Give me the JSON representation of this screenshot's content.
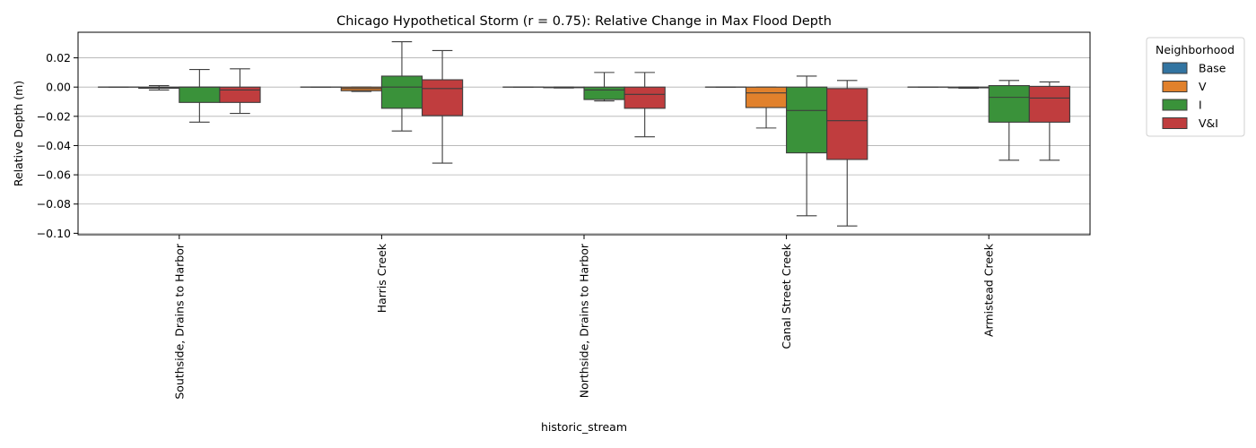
{
  "chart_data": {
    "type": "box",
    "title": "Chicago Hypothetical Storm (r = 0.75): Relative Change in Max Flood Depth",
    "xlabel": "historic_stream",
    "ylabel": "Relative Depth (m)",
    "ylim": [
      -0.101,
      0.0375
    ],
    "yticks": [
      0.02,
      0.0,
      -0.02,
      -0.04,
      -0.06,
      -0.08,
      -0.1
    ],
    "ytick_labels": [
      "0.02",
      "0.00",
      "−0.02",
      "−0.04",
      "−0.06",
      "−0.08",
      "−0.10"
    ],
    "grid": "y",
    "categories": [
      "Southside, Drains to Harbor",
      "Harris Creek",
      "Northside, Drains to Harbor",
      "Canal Street Creek",
      "Armistead Creek"
    ],
    "legend": {
      "title": "Neighborhood",
      "placement": "outside-top-right"
    },
    "series": [
      {
        "name": "Base",
        "color": "#3274a1",
        "boxes": [
          {
            "whislo": 0.0,
            "q1": 0.0,
            "med": 0.0,
            "q3": 0.0,
            "whishi": 0.0
          },
          {
            "whislo": 0.0,
            "q1": 0.0,
            "med": 0.0,
            "q3": 0.0,
            "whishi": 0.0
          },
          {
            "whislo": 0.0,
            "q1": 0.0,
            "med": 0.0,
            "q3": 0.0,
            "whishi": 0.0
          },
          {
            "whislo": 0.0,
            "q1": 0.0,
            "med": 0.0,
            "q3": 0.0,
            "whishi": 0.0
          },
          {
            "whislo": 0.0,
            "q1": 0.0,
            "med": 0.0,
            "q3": 0.0,
            "whishi": 0.0
          }
        ]
      },
      {
        "name": "V",
        "color": "#e1812c",
        "boxes": [
          {
            "whislo": -0.002,
            "q1": -0.0008,
            "med": -0.0003,
            "q3": 0.0,
            "whishi": 0.001
          },
          {
            "whislo": -0.003,
            "q1": -0.0025,
            "med": -0.001,
            "q3": 0.0,
            "whishi": 0.0
          },
          {
            "whislo": -0.0006,
            "q1": -0.0004,
            "med": -0.0002,
            "q3": 0.0,
            "whishi": 0.0
          },
          {
            "whislo": -0.028,
            "q1": -0.014,
            "med": -0.004,
            "q3": 0.0,
            "whishi": 0.0
          },
          {
            "whislo": -0.0008,
            "q1": -0.0005,
            "med": -0.0002,
            "q3": 0.0,
            "whishi": 0.0
          }
        ]
      },
      {
        "name": "I",
        "color": "#3a923a",
        "boxes": [
          {
            "whislo": -0.024,
            "q1": -0.0105,
            "med": 0.0,
            "q3": 0.0,
            "whishi": 0.012
          },
          {
            "whislo": -0.03,
            "q1": -0.0145,
            "med": 0.0,
            "q3": 0.0075,
            "whishi": 0.031
          },
          {
            "whislo": -0.0095,
            "q1": -0.0085,
            "med": -0.002,
            "q3": 0.0,
            "whishi": 0.01
          },
          {
            "whislo": -0.088,
            "q1": -0.045,
            "med": -0.016,
            "q3": 0.0,
            "whishi": 0.0075
          },
          {
            "whislo": -0.05,
            "q1": -0.024,
            "med": -0.007,
            "q3": 0.001,
            "whishi": 0.0045
          }
        ]
      },
      {
        "name": "V&I",
        "color": "#c03d3e",
        "boxes": [
          {
            "whislo": -0.018,
            "q1": -0.0105,
            "med": -0.002,
            "q3": 0.0,
            "whishi": 0.0125
          },
          {
            "whislo": -0.052,
            "q1": -0.0195,
            "med": -0.001,
            "q3": 0.005,
            "whishi": 0.025
          },
          {
            "whislo": -0.034,
            "q1": -0.0145,
            "med": -0.005,
            "q3": 0.0,
            "whishi": 0.01
          },
          {
            "whislo": -0.095,
            "q1": -0.0495,
            "med": -0.023,
            "q3": -0.001,
            "whishi": 0.0045
          },
          {
            "whislo": -0.05,
            "q1": -0.024,
            "med": -0.0075,
            "q3": 0.0005,
            "whishi": 0.0035
          }
        ]
      }
    ]
  }
}
